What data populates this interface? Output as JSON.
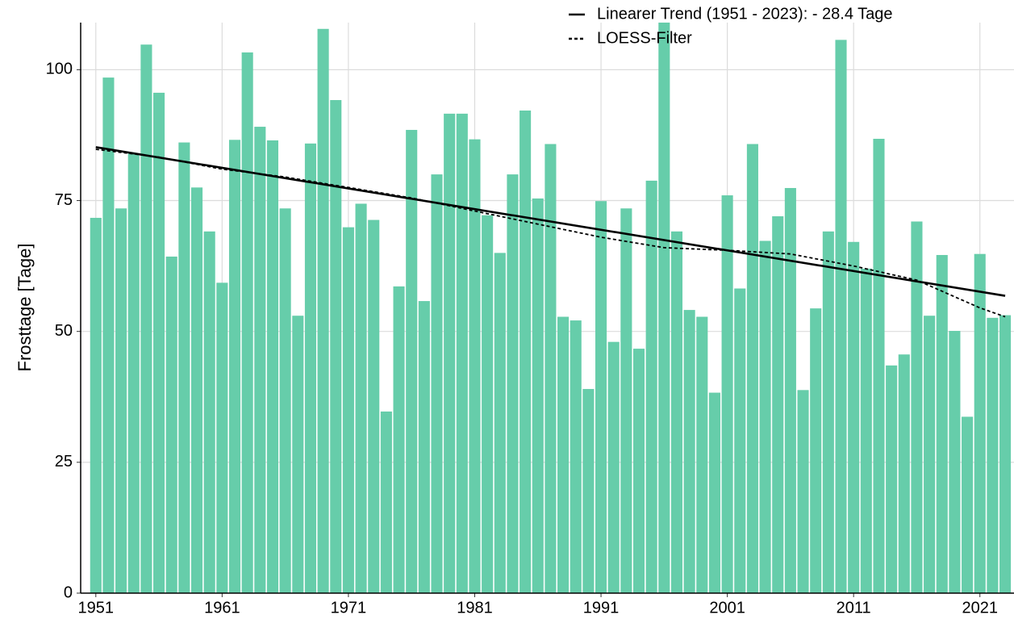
{
  "chart_data": {
    "type": "bar",
    "ylabel": "Frosttage [Tage]",
    "color": "#66cdaa",
    "x": [
      1951,
      1952,
      1953,
      1954,
      1955,
      1956,
      1957,
      1958,
      1959,
      1960,
      1961,
      1962,
      1963,
      1964,
      1965,
      1966,
      1967,
      1968,
      1969,
      1970,
      1971,
      1972,
      1973,
      1974,
      1975,
      1976,
      1977,
      1978,
      1979,
      1980,
      1981,
      1982,
      1983,
      1984,
      1985,
      1986,
      1987,
      1988,
      1989,
      1990,
      1991,
      1992,
      1993,
      1994,
      1995,
      1996,
      1997,
      1998,
      1999,
      2000,
      2001,
      2002,
      2003,
      2004,
      2005,
      2006,
      2007,
      2008,
      2009,
      2010,
      2011,
      2012,
      2013,
      2014,
      2015,
      2016,
      2017,
      2018,
      2019,
      2020,
      2021,
      2022,
      2023
    ],
    "values": [
      71.7,
      98.5,
      73.5,
      84,
      104.8,
      95.6,
      64.3,
      86.1,
      77.5,
      69.1,
      59.3,
      86.6,
      103.3,
      89.1,
      86.5,
      73.5,
      53.0,
      85.9,
      107.8,
      94.2,
      69.9,
      74.4,
      71.3,
      34.7,
      58.6,
      88.5,
      55.8,
      80.0,
      91.6,
      91.6,
      86.7,
      72.2,
      65.0,
      80.0,
      92.2,
      75.4,
      85.8,
      52.8,
      52.1,
      39.0,
      74.9,
      48.0,
      73.5,
      46.7,
      78.8,
      110,
      69.1,
      54.1,
      52.8,
      38.3,
      76.0,
      58.2,
      85.8,
      67.3,
      72.0,
      77.4,
      38.8,
      54.4,
      69.1,
      105.7,
      67.1,
      62.0,
      86.8,
      43.5,
      45.6,
      71.0,
      53.0,
      64.6,
      50.1,
      33.7,
      64.8,
      52.6,
      53.1
    ],
    "lines": [
      {
        "name": "Linearer Trend (1951 - 2023): - 28.4 Tage",
        "color": "#000000",
        "dash": "solid",
        "x": [
          1951,
          2023
        ],
        "values": [
          85.2,
          56.8
        ]
      },
      {
        "name": "LOESS-Filter",
        "color": "#000000",
        "dash": "dashed",
        "x": [
          1951,
          1956,
          1961,
          1966,
          1971,
          1976,
          1981,
          1986,
          1991,
          1996,
          2001,
          2006,
          2011,
          2016,
          2021,
          2023
        ],
        "values": [
          84.8,
          83.3,
          81.0,
          79.5,
          77.5,
          75.5,
          73.0,
          70.5,
          68.0,
          66.0,
          65.5,
          64.8,
          62.5,
          59.8,
          54.5,
          52.8
        ]
      }
    ],
    "xlim": [
      1949.8,
      2023.7
    ],
    "xticks": [
      1951,
      1961,
      1971,
      1981,
      1991,
      2001,
      2011,
      2021
    ],
    "ylim": [
      0,
      109
    ],
    "yticks": [
      0,
      25,
      50,
      75,
      100
    ],
    "grid": true,
    "legend": "top-right"
  }
}
